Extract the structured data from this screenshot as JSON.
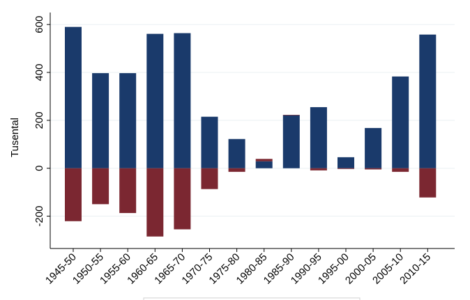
{
  "chart_data": {
    "type": "bar",
    "stacked": true,
    "title": "",
    "xlabel": "",
    "ylabel": "Tusental",
    "ylim": [
      -335,
      650
    ],
    "yticks": [
      -200,
      0,
      200,
      400,
      600
    ],
    "ytick_labels": [
      "-200",
      "0",
      "200",
      "400",
      "600"
    ],
    "grid": true,
    "categories": [
      "1945-50",
      "1950-55",
      "1955-60",
      "1960-65",
      "1965-70",
      "1970-75",
      "1975-80",
      "1980-85",
      "1985-90",
      "1990-95",
      "1995-00",
      "2000-05",
      "2005-10",
      "2010-15"
    ],
    "series": [
      {
        "color": "#1a3a6b",
        "values": [
          590,
          397,
          397,
          561,
          564,
          215,
          122,
          29,
          221,
          255,
          46,
          168,
          383,
          558
        ]
      },
      {
        "color": "#7b2731",
        "values": [
          -221,
          -150,
          -187,
          -285,
          -255,
          -87,
          -15,
          10,
          2,
          -9,
          -3,
          -5,
          -15,
          -122
        ]
      }
    ]
  }
}
